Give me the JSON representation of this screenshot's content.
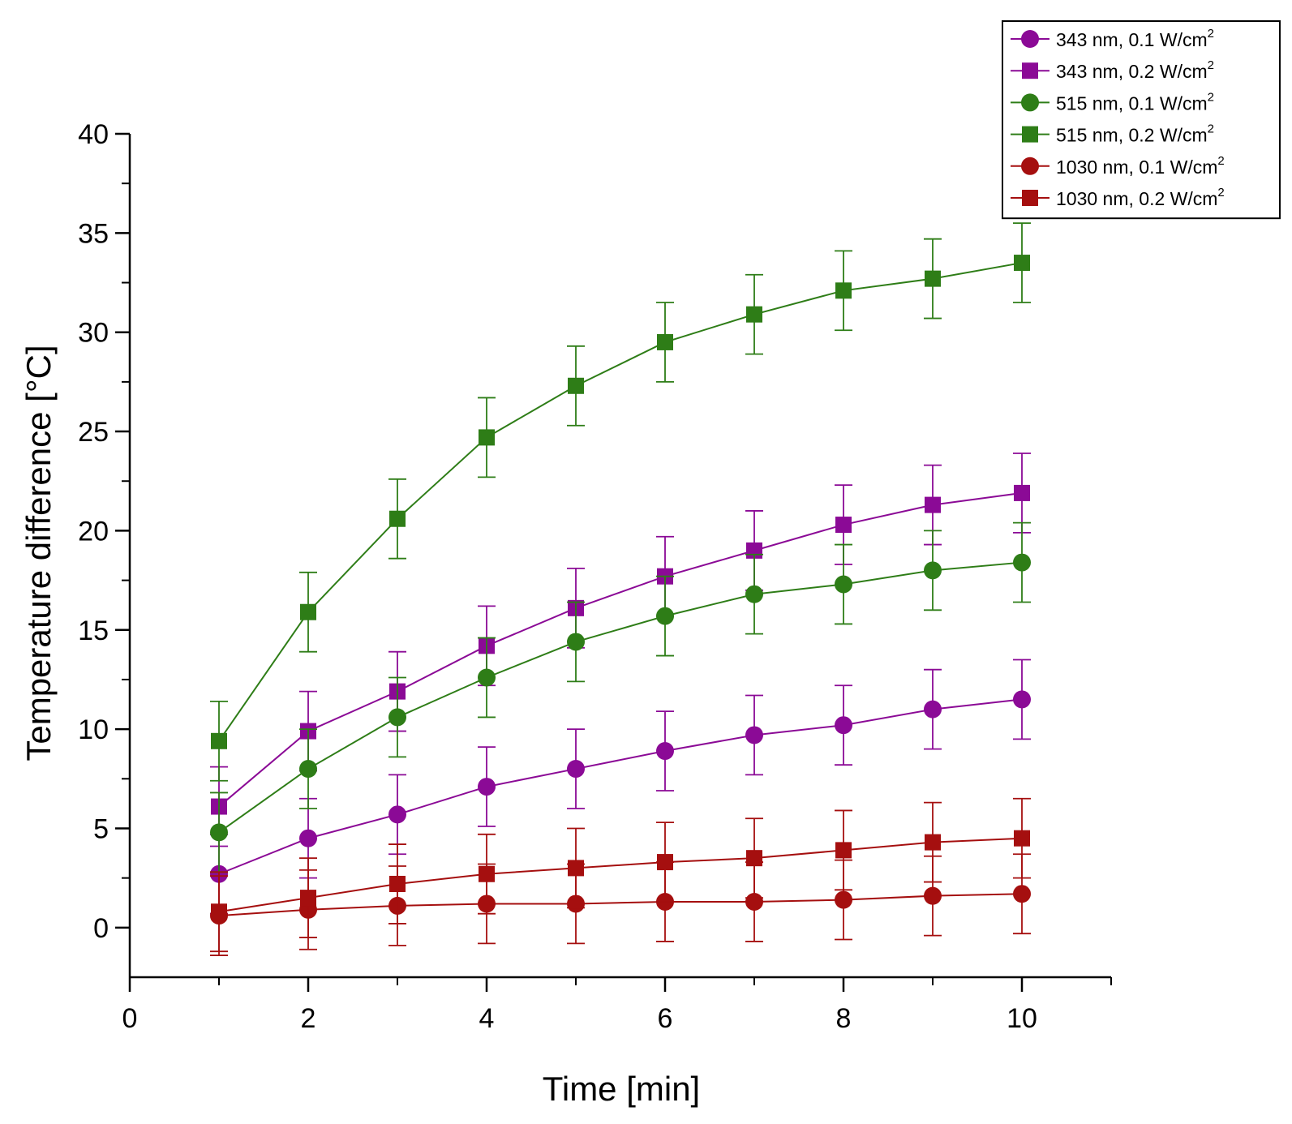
{
  "chart_data": {
    "type": "line",
    "title": "",
    "xlabel": "Time [min]",
    "ylabel": "Temperature difference [°C]",
    "xlim": [
      0,
      11
    ],
    "ylim": [
      -2.5,
      40
    ],
    "x_ticks": [
      0,
      2,
      4,
      6,
      8,
      10
    ],
    "y_ticks": [
      0,
      5,
      10,
      15,
      20,
      25,
      30,
      35,
      40
    ],
    "grid": false,
    "legend_position": "top-right",
    "x": [
      1,
      2,
      3,
      4,
      5,
      6,
      7,
      8,
      9,
      10
    ],
    "error_bar": 2,
    "series": [
      {
        "label_main": "343 nm, 0.1 W/cm",
        "label_sup": "2",
        "color": "#8b0a96",
        "marker": "circle",
        "values": [
          2.7,
          4.5,
          5.7,
          7.1,
          8.0,
          8.9,
          9.7,
          10.2,
          11.0,
          11.5
        ]
      },
      {
        "label_main": "343 nm, 0.2 W/cm",
        "label_sup": "2",
        "color": "#8b0a96",
        "marker": "square",
        "values": [
          6.1,
          9.9,
          11.9,
          14.2,
          16.1,
          17.7,
          19.0,
          20.3,
          21.3,
          21.9
        ]
      },
      {
        "label_main": "515 nm, 0.1 W/cm",
        "label_sup": "2",
        "color": "#2e7d17",
        "marker": "circle",
        "values": [
          4.8,
          8.0,
          10.6,
          12.6,
          14.4,
          15.7,
          16.8,
          17.3,
          18.0,
          18.4
        ]
      },
      {
        "label_main": "515 nm, 0.2 W/cm",
        "label_sup": "2",
        "color": "#2e7d17",
        "marker": "square",
        "values": [
          9.4,
          15.9,
          20.6,
          24.7,
          27.3,
          29.5,
          30.9,
          32.1,
          32.7,
          33.5
        ]
      },
      {
        "label_main": "1030 nm, 0.1 W/cm",
        "label_sup": "2",
        "color": "#a50f0f",
        "marker": "circle",
        "values": [
          0.6,
          0.9,
          1.1,
          1.2,
          1.2,
          1.3,
          1.3,
          1.4,
          1.6,
          1.7
        ]
      },
      {
        "label_main": "1030 nm, 0.2 W/cm",
        "label_sup": "2",
        "color": "#a50f0f",
        "marker": "square",
        "values": [
          0.8,
          1.5,
          2.2,
          2.7,
          3.0,
          3.3,
          3.5,
          3.9,
          4.3,
          4.5
        ]
      }
    ]
  }
}
